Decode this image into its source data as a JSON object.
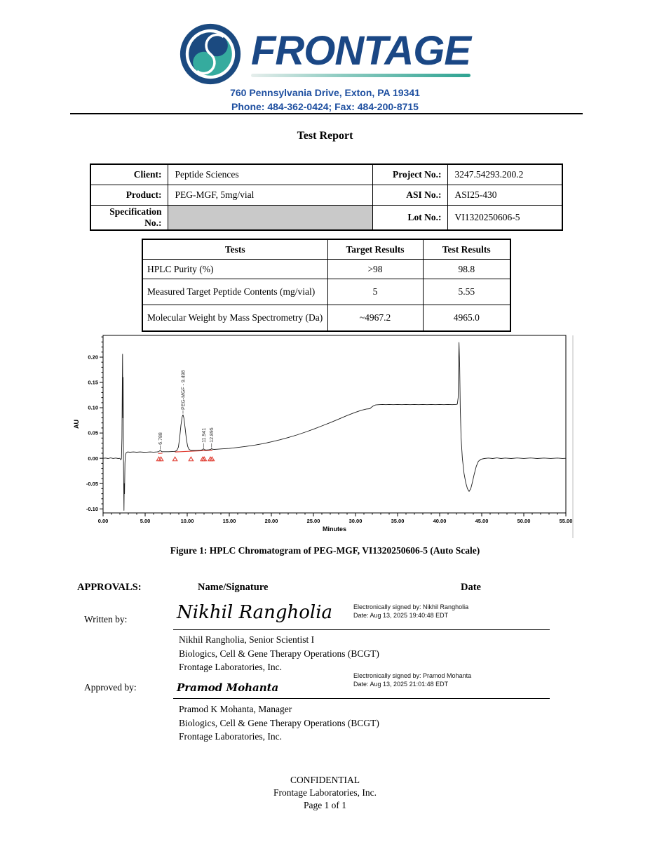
{
  "header": {
    "brand": "FRONTAGE",
    "address_line1": "760 Pennsylvania Drive, Exton, PA 19341",
    "address_line2": "Phone: 484-362-0424; Fax: 484-200-8715",
    "brand_color": "#1a4785",
    "teal_color": "#2ea392"
  },
  "title": "Test Report",
  "info_table": {
    "rows": [
      {
        "label1": "Client:",
        "value1": "Peptide Sciences",
        "label2": "Project No.:",
        "value2": "3247.54293.200.2"
      },
      {
        "label1": "Product:",
        "value1": "PEG-MGF, 5mg/vial",
        "label2": "ASI No.:",
        "value2": "ASI25-430"
      },
      {
        "label1": "Specification No.:",
        "value1": "",
        "label2": "Lot No.:",
        "value2": "VI1320250606-5"
      }
    ]
  },
  "results_table": {
    "headers": [
      "Tests",
      "Target Results",
      "Test Results"
    ],
    "rows": [
      [
        "HPLC Purity (%)",
        ">98",
        "98.8"
      ],
      [
        "Measured Target Peptide Contents (mg/vial)",
        "5",
        "5.55"
      ],
      [
        "Molecular Weight by Mass Spectrometry (Da)",
        "~4967.2",
        "4965.0"
      ]
    ]
  },
  "figure_caption": "Figure 1: HPLC Chromatogram of PEG-MGF, VI1320250606-5 (Auto Scale)",
  "chart_data": {
    "type": "line",
    "title": "",
    "xlabel": "Minutes",
    "ylabel": "AU",
    "xlim": [
      0,
      55
    ],
    "ylim": [
      -0.108,
      0.243
    ],
    "xticks_major": [
      0,
      5,
      10,
      15,
      20,
      25,
      30,
      35,
      40,
      45,
      50,
      55
    ],
    "yticks_major": [
      0.2,
      0.15,
      0.1,
      0.05,
      0.0,
      -0.05,
      -0.1
    ],
    "grid": false,
    "line_color": "#1a1a1a",
    "curve_points": [
      [
        0,
        0.0
      ],
      [
        0.3,
        0.0005
      ],
      [
        0.6,
        -0.0005
      ],
      [
        0.9,
        0.0008
      ],
      [
        1.2,
        -0.0003
      ],
      [
        1.5,
        0.0005
      ],
      [
        1.8,
        -0.0005
      ],
      [
        2.0,
        0.0
      ],
      [
        2.1,
        -0.003
      ],
      [
        2.18,
        -0.001
      ],
      [
        2.24,
        0.04
      ],
      [
        2.28,
        0.14
      ],
      [
        2.32,
        0.206
      ],
      [
        2.35,
        0.08
      ],
      [
        2.38,
        0.16
      ],
      [
        2.42,
        0.02
      ],
      [
        2.45,
        -0.05
      ],
      [
        2.48,
        -0.103
      ],
      [
        2.52,
        -0.05
      ],
      [
        2.55,
        -0.07
      ],
      [
        2.6,
        -0.01
      ],
      [
        2.65,
        0.006
      ],
      [
        2.75,
        0.011
      ],
      [
        2.9,
        0.0125
      ],
      [
        3.2,
        0.012
      ],
      [
        3.6,
        0.0125
      ],
      [
        4.0,
        0.012
      ],
      [
        4.4,
        0.0125
      ],
      [
        4.8,
        0.012
      ],
      [
        5.2,
        0.0122
      ],
      [
        5.6,
        0.0125
      ],
      [
        6.0,
        0.0122
      ],
      [
        6.4,
        0.0125
      ],
      [
        6.6,
        0.013
      ],
      [
        6.72,
        0.0145
      ],
      [
        6.79,
        0.016
      ],
      [
        6.87,
        0.0145
      ],
      [
        7.0,
        0.013
      ],
      [
        7.4,
        0.013
      ],
      [
        7.8,
        0.013
      ],
      [
        8.2,
        0.0132
      ],
      [
        8.5,
        0.0135
      ],
      [
        8.75,
        0.015
      ],
      [
        8.95,
        0.022
      ],
      [
        9.1,
        0.04
      ],
      [
        9.25,
        0.065
      ],
      [
        9.4,
        0.082
      ],
      [
        9.5,
        0.086
      ],
      [
        9.6,
        0.08
      ],
      [
        9.75,
        0.06
      ],
      [
        9.9,
        0.038
      ],
      [
        10.05,
        0.024
      ],
      [
        10.2,
        0.018
      ],
      [
        10.45,
        0.0155
      ],
      [
        10.8,
        0.0155
      ],
      [
        11.2,
        0.0158
      ],
      [
        11.6,
        0.016
      ],
      [
        11.82,
        0.0168
      ],
      [
        11.94,
        0.019
      ],
      [
        12.06,
        0.0168
      ],
      [
        12.3,
        0.0165
      ],
      [
        12.6,
        0.017
      ],
      [
        12.83,
        0.018
      ],
      [
        12.9,
        0.0195
      ],
      [
        12.98,
        0.018
      ],
      [
        13.2,
        0.0175
      ],
      [
        13.6,
        0.018
      ],
      [
        14.0,
        0.0185
      ],
      [
        15,
        0.0195
      ],
      [
        16,
        0.0215
      ],
      [
        17,
        0.0235
      ],
      [
        18,
        0.026
      ],
      [
        19,
        0.029
      ],
      [
        20,
        0.0325
      ],
      [
        21,
        0.0365
      ],
      [
        22,
        0.041
      ],
      [
        23,
        0.046
      ],
      [
        24,
        0.0515
      ],
      [
        25,
        0.0575
      ],
      [
        26,
        0.064
      ],
      [
        27,
        0.0705
      ],
      [
        28,
        0.0775
      ],
      [
        29,
        0.0845
      ],
      [
        30,
        0.091
      ],
      [
        30.7,
        0.095
      ],
      [
        31.3,
        0.0975
      ],
      [
        31.7,
        0.098
      ],
      [
        31.9,
        0.101
      ],
      [
        32.1,
        0.1035
      ],
      [
        32.4,
        0.1055
      ],
      [
        32.8,
        0.106
      ],
      [
        33.2,
        0.1065
      ],
      [
        33.6,
        0.106
      ],
      [
        34,
        0.1065
      ],
      [
        34.5,
        0.106
      ],
      [
        35,
        0.1065
      ],
      [
        35.5,
        0.106
      ],
      [
        36,
        0.1065
      ],
      [
        36.5,
        0.106
      ],
      [
        37,
        0.1065
      ],
      [
        37.5,
        0.106
      ],
      [
        38,
        0.1065
      ],
      [
        38.5,
        0.106
      ],
      [
        39,
        0.1065
      ],
      [
        39.5,
        0.106
      ],
      [
        40,
        0.1065
      ],
      [
        40.5,
        0.106
      ],
      [
        41,
        0.1065
      ],
      [
        41.5,
        0.106
      ],
      [
        41.9,
        0.1065
      ],
      [
        42.1,
        0.107
      ],
      [
        42.2,
        0.12
      ],
      [
        42.3,
        0.229
      ],
      [
        42.38,
        0.18
      ],
      [
        42.45,
        0.1
      ],
      [
        42.55,
        0.04
      ],
      [
        42.7,
        0.0
      ],
      [
        42.9,
        -0.03
      ],
      [
        43.1,
        -0.048
      ],
      [
        43.3,
        -0.06
      ],
      [
        43.5,
        -0.0655
      ],
      [
        43.7,
        -0.06
      ],
      [
        43.9,
        -0.047
      ],
      [
        44.1,
        -0.032
      ],
      [
        44.35,
        -0.016
      ],
      [
        44.6,
        -0.006
      ],
      [
        44.9,
        -0.002
      ],
      [
        45.3,
        -0.0005
      ],
      [
        45.8,
        0.0005
      ],
      [
        46.3,
        -0.0005
      ],
      [
        46.8,
        0.0008
      ],
      [
        47.3,
        -0.0005
      ],
      [
        47.8,
        0.0005
      ],
      [
        48.5,
        -0.0005
      ],
      [
        49.2,
        0.0006
      ],
      [
        50,
        -0.0004
      ],
      [
        50.8,
        0.0006
      ],
      [
        51.6,
        -0.0005
      ],
      [
        52.4,
        0.0005
      ],
      [
        53.2,
        -0.0004
      ],
      [
        54,
        0.0005
      ],
      [
        54.6,
        -0.0003
      ],
      [
        55,
        0.0
      ]
    ],
    "peaks": [
      {
        "label": "6.788",
        "x": 6.788,
        "curve_y": 0.016,
        "label_y": 0.027
      },
      {
        "label": "PEG-MGF - 9.498",
        "x": 9.498,
        "curve_y": 0.087,
        "label_y": 0.096
      },
      {
        "label": "11.941",
        "x": 11.941,
        "curve_y": 0.019,
        "label_y": 0.031
      },
      {
        "label": "12.895",
        "x": 12.895,
        "curve_y": 0.02,
        "label_y": 0.031
      }
    ],
    "integration": {
      "color": "#e03c31",
      "baselines": [
        [
          6.55,
          0.0095,
          7.05,
          0.01
        ],
        [
          8.55,
          0.0125,
          13.0,
          0.016
        ]
      ],
      "markers_x": [
        6.63,
        6.88,
        8.55,
        10.45,
        11.85,
        12.02,
        12.75,
        12.95
      ]
    }
  },
  "approvals": {
    "heading": "APPROVALS:",
    "col_name": "Name/Signature",
    "col_date": "Date",
    "entries": [
      {
        "role": "Written by:",
        "signature": "Nikhil Rangholia",
        "esign_line1": "Electronically signed by: Nikhil Rangholia",
        "esign_line2": "Date: Aug 13, 2025 19:40:48 EDT",
        "name_lines": [
          "Nikhil Rangholia, Senior Scientist I",
          "Biologics, Cell & Gene Therapy Operations (BCGT)",
          "Frontage Laboratories, Inc."
        ]
      },
      {
        "role": "Approved by:",
        "signature": "Pramod Mohanta",
        "esign_line1": "Electronically signed by: Pramod Mohanta",
        "esign_line2": "Date: Aug 13, 2025 21:01:48 EDT",
        "name_lines": [
          "Pramod K Mohanta, Manager",
          "Biologics, Cell & Gene Therapy Operations (BCGT)",
          "Frontage Laboratories, Inc."
        ]
      }
    ]
  },
  "footer": {
    "line1": "CONFIDENTIAL",
    "line2": "Frontage Laboratories, Inc.",
    "line3": "Page 1 of 1"
  }
}
